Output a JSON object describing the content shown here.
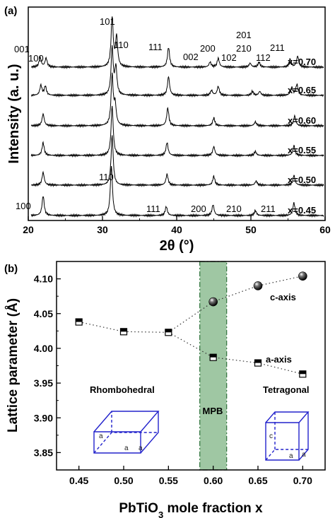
{
  "panel_a": {
    "label": "(a)",
    "ylabel": "Intensity (a. u.)",
    "xlabel": "2θ (°)",
    "series_labels": [
      "x=0.70",
      "x=0.65",
      "x=0.60",
      "x=0.55",
      "x=0.50",
      "x=0.45"
    ],
    "peak_labels_top": [
      "001",
      "100",
      "101",
      "110",
      "111",
      "002",
      "200",
      "201",
      "102",
      "210",
      "112",
      "211"
    ],
    "peak_labels_bottom": [
      "100",
      "110",
      "111",
      "200",
      "210",
      "211"
    ]
  },
  "panel_b": {
    "label": "(b)",
    "ylabel": "Lattice parameter (Å)",
    "xlabel_main": "PbTiO",
    "xlabel_sub": "3",
    "xlabel_rest": " mole fraction x",
    "phase_left": "Rhombohedral",
    "phase_right": "Tetragonal",
    "band_label": "MPB",
    "c_axis_label": "c-axis",
    "a_axis_label": "a-axis",
    "cell_left_labels": [
      "a",
      "a",
      "a"
    ],
    "cell_right_labels": [
      "c",
      "a",
      "a"
    ]
  },
  "colors": {
    "cell_lines": "#2222cc",
    "mpb_fill": "#9fc7a3",
    "mpb_border": "#3a7a45"
  },
  "chart_data": [
    {
      "type": "line",
      "title": "",
      "xlabel": "2θ (°)",
      "ylabel": "Intensity (a. u.)",
      "xlim": [
        20,
        60
      ],
      "x_ticks": [
        "20",
        "30",
        "40",
        "50",
        "60"
      ],
      "y_ticks": [],
      "series": [
        {
          "name": "x=0.70",
          "peaks": [
            {
              "x": 21.6,
              "h": 0.2
            },
            {
              "x": 22.4,
              "h": 0.18
            },
            {
              "x": 31.3,
              "h": 1.0
            },
            {
              "x": 31.9,
              "h": 0.6
            },
            {
              "x": 38.9,
              "h": 0.4
            },
            {
              "x": 44.5,
              "h": 0.1
            },
            {
              "x": 45.6,
              "h": 0.18
            },
            {
              "x": 49.9,
              "h": 0.08
            },
            {
              "x": 51.1,
              "h": 0.1
            },
            {
              "x": 55.3,
              "h": 0.16
            },
            {
              "x": 56.3,
              "h": 0.22
            }
          ]
        },
        {
          "name": "x=0.65",
          "peaks": [
            {
              "x": 21.7,
              "h": 0.2
            },
            {
              "x": 22.3,
              "h": 0.18
            },
            {
              "x": 31.3,
              "h": 0.95
            },
            {
              "x": 31.8,
              "h": 0.55
            },
            {
              "x": 38.9,
              "h": 0.38
            },
            {
              "x": 44.7,
              "h": 0.1
            },
            {
              "x": 45.6,
              "h": 0.18
            },
            {
              "x": 50.2,
              "h": 0.08
            },
            {
              "x": 51.2,
              "h": 0.08
            },
            {
              "x": 55.5,
              "h": 0.16
            },
            {
              "x": 56.2,
              "h": 0.22
            }
          ]
        },
        {
          "name": "x=0.60",
          "peaks": [
            {
              "x": 22.0,
              "h": 0.24
            },
            {
              "x": 31.3,
              "h": 1.0
            },
            {
              "x": 31.7,
              "h": 0.4
            },
            {
              "x": 38.8,
              "h": 0.36
            },
            {
              "x": 45.0,
              "h": 0.16
            },
            {
              "x": 50.6,
              "h": 0.08
            },
            {
              "x": 55.9,
              "h": 0.2
            }
          ]
        },
        {
          "name": "x=0.55",
          "peaks": [
            {
              "x": 22.0,
              "h": 0.26
            },
            {
              "x": 31.3,
              "h": 1.0
            },
            {
              "x": 38.7,
              "h": 0.26
            },
            {
              "x": 45.0,
              "h": 0.18
            },
            {
              "x": 50.6,
              "h": 0.08
            },
            {
              "x": 55.8,
              "h": 0.2
            }
          ]
        },
        {
          "name": "x=0.50",
          "peaks": [
            {
              "x": 22.0,
              "h": 0.26
            },
            {
              "x": 31.3,
              "h": 1.0
            },
            {
              "x": 38.7,
              "h": 0.22
            },
            {
              "x": 45.0,
              "h": 0.18
            },
            {
              "x": 50.7,
              "h": 0.08
            },
            {
              "x": 55.8,
              "h": 0.2
            }
          ]
        },
        {
          "name": "x=0.45",
          "peaks": [
            {
              "x": 22.0,
              "h": 0.4
            },
            {
              "x": 31.2,
              "h": 1.0
            },
            {
              "x": 38.6,
              "h": 0.18
            },
            {
              "x": 44.9,
              "h": 0.22
            },
            {
              "x": 50.6,
              "h": 0.1
            },
            {
              "x": 55.8,
              "h": 0.26
            }
          ]
        }
      ]
    },
    {
      "type": "scatter",
      "title": "",
      "xlabel": "PbTiO3 mole fraction x",
      "ylabel": "Lattice parameter (Å)",
      "xlim": [
        0.425,
        0.725
      ],
      "ylim": [
        3.825,
        4.125
      ],
      "x_ticks": [
        "0.45",
        "0.50",
        "0.55",
        "0.60",
        "0.65",
        "0.70"
      ],
      "y_ticks": [
        "3.85",
        "3.90",
        "3.95",
        "4.00",
        "4.05",
        "4.10"
      ],
      "mpb_range": [
        0.585,
        0.615
      ],
      "series": [
        {
          "name": "rhombohedral",
          "marker": "half-square",
          "x": [
            0.45,
            0.5,
            0.55
          ],
          "y": [
            4.038,
            4.024,
            4.023
          ]
        },
        {
          "name": "c-axis",
          "marker": "sphere",
          "x": [
            0.6,
            0.65,
            0.7
          ],
          "y": [
            4.067,
            4.09,
            4.104
          ]
        },
        {
          "name": "a-axis",
          "marker": "half-square",
          "x": [
            0.6,
            0.65,
            0.7
          ],
          "y": [
            3.987,
            3.979,
            3.963
          ]
        }
      ]
    }
  ]
}
